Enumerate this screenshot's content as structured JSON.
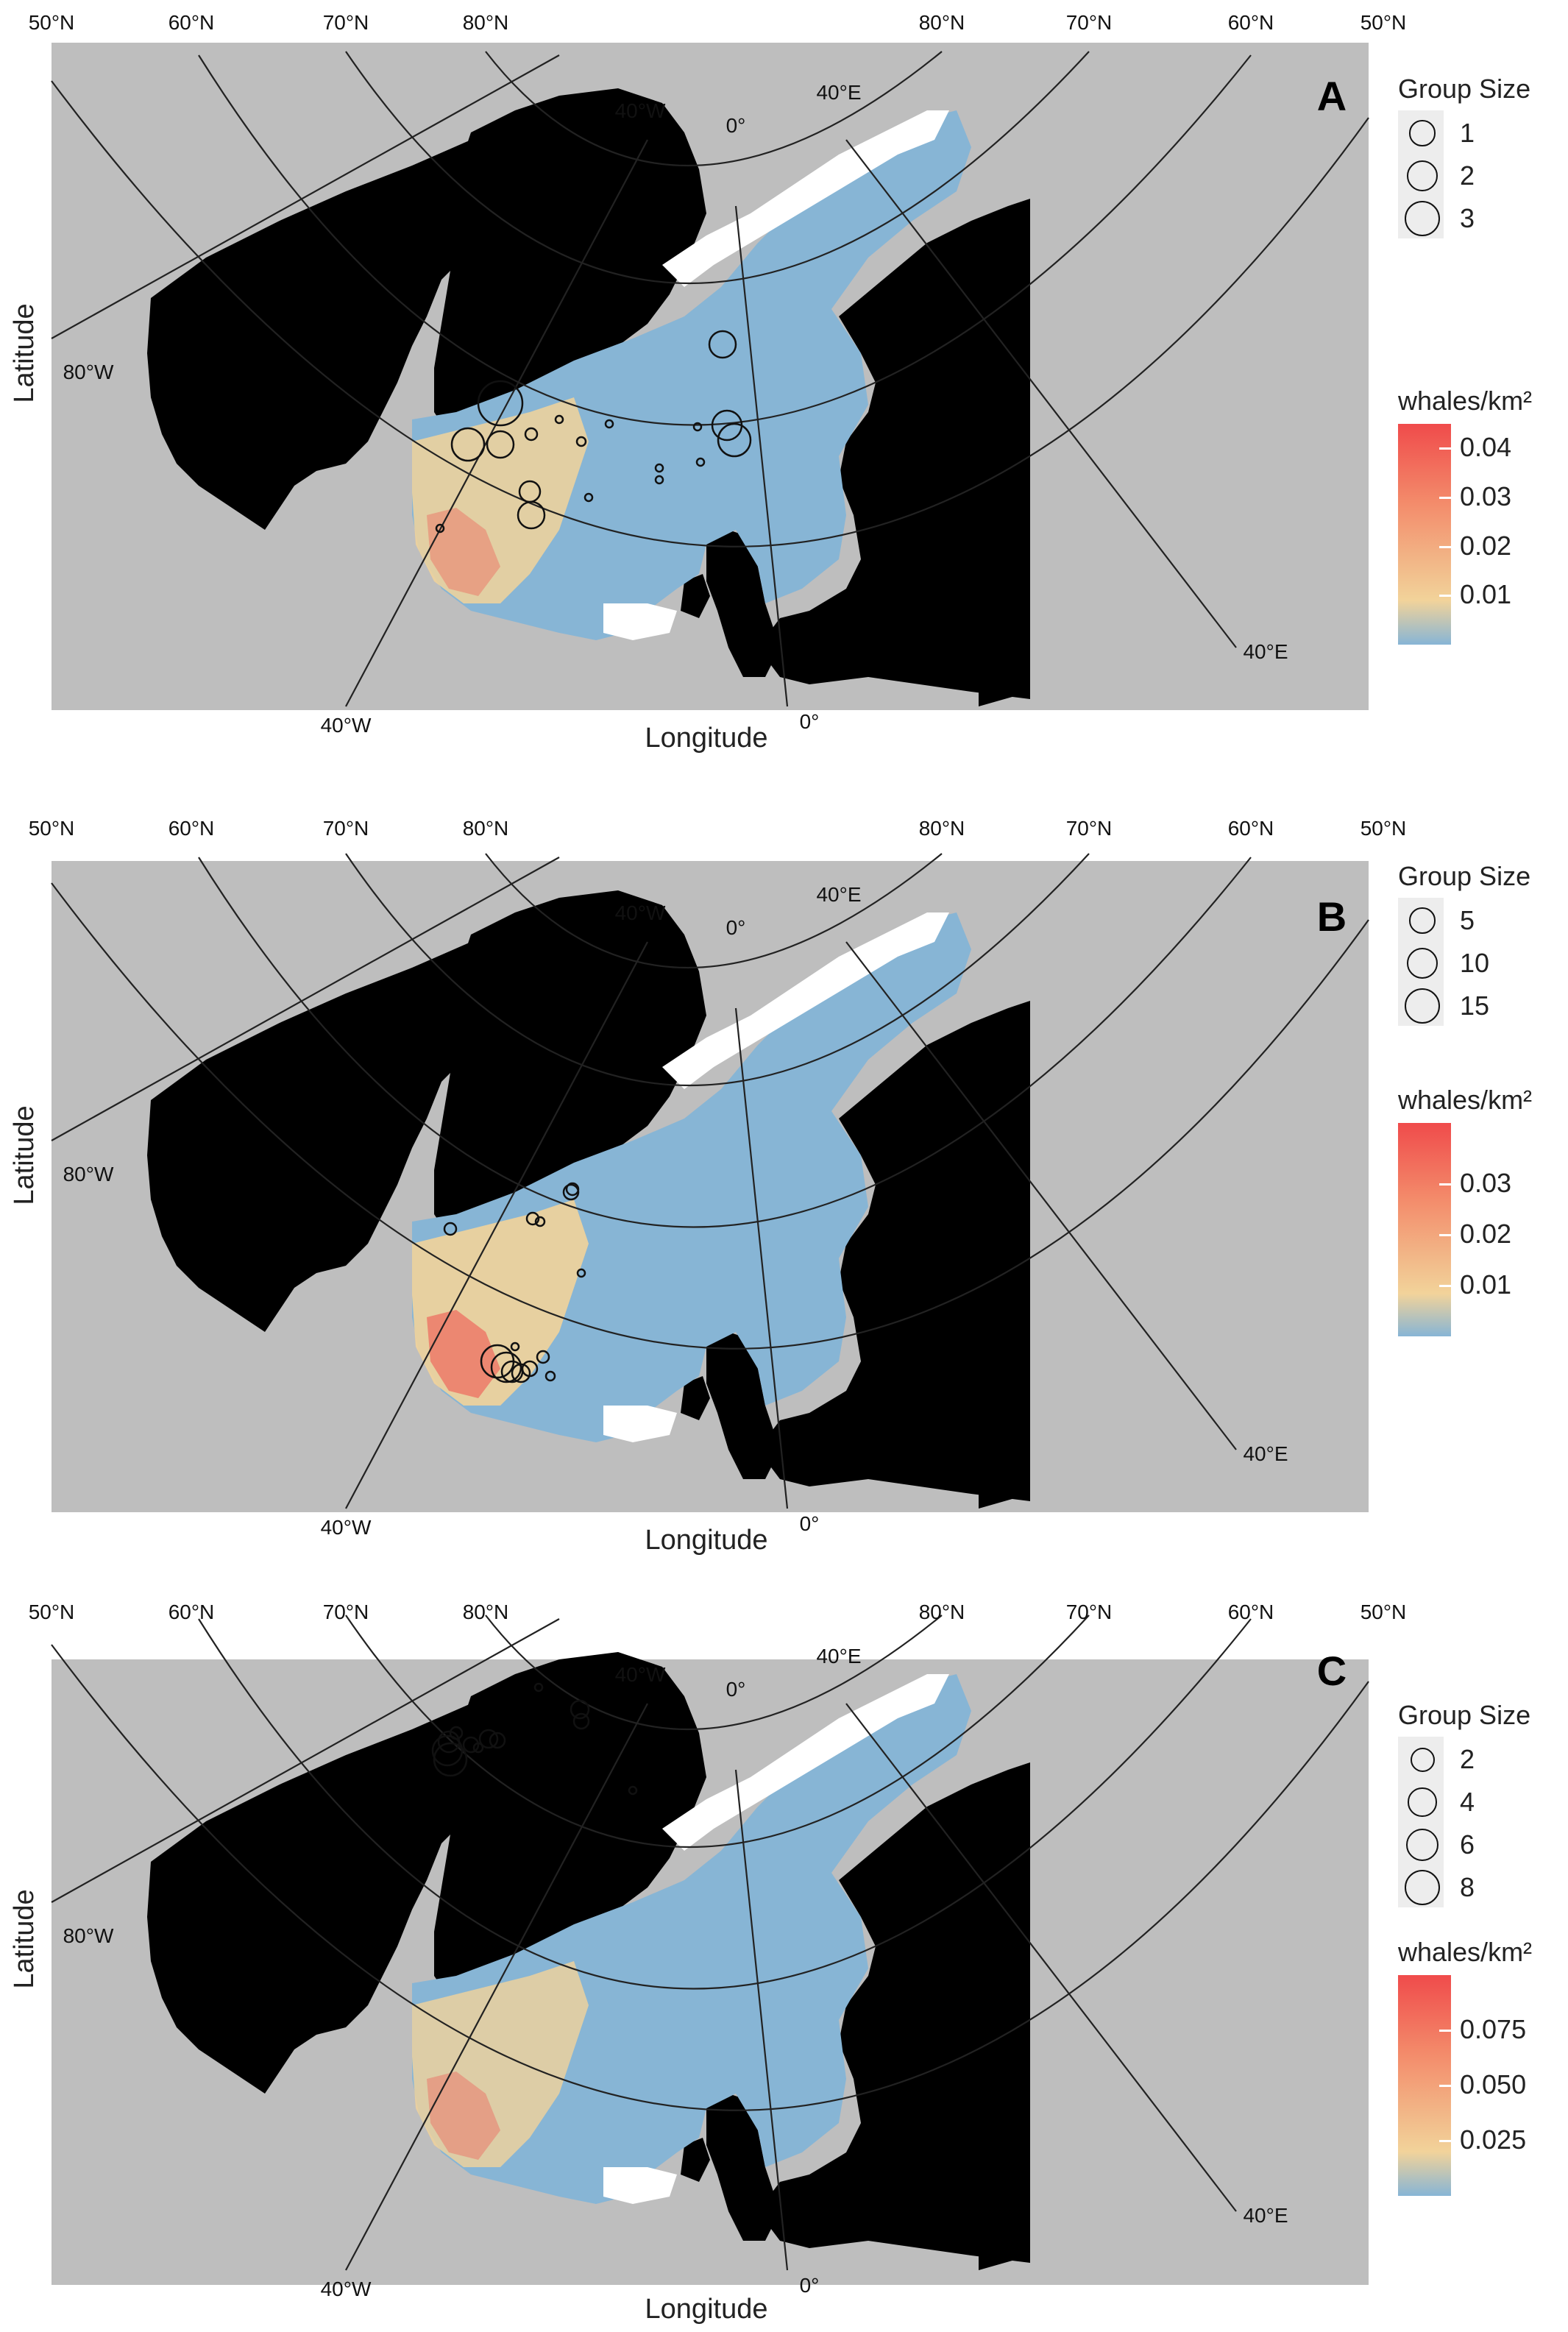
{
  "panels": [
    {
      "id": "A",
      "letter": "A",
      "lat_labels_top": [
        "50°N",
        "60°N",
        "70°N",
        "80°N",
        "80°N",
        "70°N",
        "60°N",
        "50°N"
      ],
      "lon_labels": {
        "w80": "80°W",
        "w40_top": "40°W",
        "zero_top": "0°",
        "e40_top": "40°E",
        "w40_bottom": "40°W",
        "zero_bottom": "0°",
        "e40_right": "40°E"
      },
      "xlabel": "Longitude",
      "ylabel": "Latitude",
      "group_size": {
        "title": "Group Size",
        "items": [
          {
            "label": "1",
            "size": 1
          },
          {
            "label": "2",
            "size": 2
          },
          {
            "label": "3",
            "size": 3
          }
        ]
      },
      "colorbar": {
        "title": "whales/km²",
        "ticks": [
          "0.04",
          "0.03",
          "0.02",
          "0.01"
        ],
        "max": 0.045,
        "tick_values": [
          0.04,
          0.03,
          0.02,
          0.01
        ]
      }
    },
    {
      "id": "B",
      "letter": "B",
      "lat_labels_top": [
        "50°N",
        "60°N",
        "70°N",
        "80°N",
        "80°N",
        "70°N",
        "60°N",
        "50°N"
      ],
      "lon_labels": {
        "w80": "80°W",
        "w40_top": "40°W",
        "zero_top": "0°",
        "e40_top": "40°E",
        "w40_bottom": "40°W",
        "zero_bottom": "0°",
        "e40_right": "40°E"
      },
      "xlabel": "Longitude",
      "ylabel": "Latitude",
      "group_size": {
        "title": "Group Size",
        "items": [
          {
            "label": "5",
            "size": 5
          },
          {
            "label": "10",
            "size": 10
          },
          {
            "label": "15",
            "size": 15
          }
        ]
      },
      "colorbar": {
        "title": "whales/km²",
        "ticks": [
          "0.03",
          "0.02",
          "0.01"
        ],
        "max": 0.042,
        "tick_values": [
          0.03,
          0.02,
          0.01
        ]
      }
    },
    {
      "id": "C",
      "letter": "C",
      "lat_labels_top": [
        "50°N",
        "60°N",
        "70°N",
        "80°N",
        "80°N",
        "70°N",
        "60°N",
        "50°N"
      ],
      "lon_labels": {
        "w80": "80°W",
        "w40_top": "40°W",
        "zero_top": "0°",
        "e40_top": "40°E",
        "w40_bottom": "40°W",
        "zero_bottom": "0°",
        "e40_right": "40°E"
      },
      "xlabel": "Longitude",
      "ylabel": "Latitude",
      "group_size": {
        "title": "Group Size",
        "items": [
          {
            "label": "2",
            "size": 2
          },
          {
            "label": "4",
            "size": 4
          },
          {
            "label": "6",
            "size": 6
          },
          {
            "label": "8",
            "size": 8
          }
        ]
      },
      "colorbar": {
        "title": "whales/km²",
        "ticks": [
          "0.075",
          "0.050",
          "0.025"
        ],
        "max": 0.1,
        "tick_values": [
          0.075,
          0.05,
          0.025
        ]
      }
    }
  ],
  "colors": {
    "background_gray": "#bebebe",
    "land": "#000000",
    "ocean_low": "#87b5d5",
    "ocean_mid": "#f2d39a",
    "ocean_high": "#f04b4b",
    "ice": "#ffffff"
  }
}
